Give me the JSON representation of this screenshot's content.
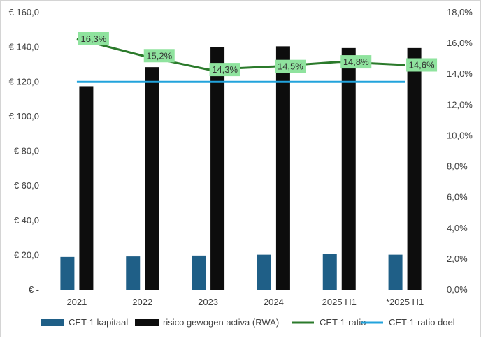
{
  "chart_data": {
    "type": "bar",
    "title": "",
    "categories": [
      "2021",
      "2022",
      "2023",
      "2024",
      "2025 H1",
      "*2025 H1"
    ],
    "left_axis": {
      "ylim": [
        0,
        160
      ],
      "ticks": [
        0,
        20,
        40,
        60,
        80,
        100,
        120,
        140,
        160
      ],
      "tick_labels": [
        "€ -",
        "€ 20,0",
        "€ 40,0",
        "€ 60,0",
        "€ 80,0",
        "€ 100,0",
        "€ 120,0",
        "€ 140,0",
        "€ 160,0"
      ]
    },
    "right_axis": {
      "ylim": [
        0,
        18
      ],
      "ticks": [
        0,
        2,
        4,
        6,
        8,
        10,
        12,
        14,
        16,
        18
      ],
      "tick_labels": [
        "0,0%",
        "2,0%",
        "4,0%",
        "6,0%",
        "8,0%",
        "10,0%",
        "12,0%",
        "14,0%",
        "16,0%",
        "18,0%"
      ]
    },
    "series": [
      {
        "name": "CET-1 kapitaal",
        "kind": "bar",
        "axis": "left",
        "color": "#1f5f87",
        "values": [
          19.0,
          19.3,
          19.8,
          20.3,
          20.7,
          20.3
        ]
      },
      {
        "name": "risico gewogen activa (RWA)",
        "kind": "bar",
        "axis": "left",
        "color": "#0d0d0d",
        "values": [
          117.5,
          128.5,
          140.0,
          140.5,
          139.5,
          139.5
        ]
      },
      {
        "name": "CET-1-ratio",
        "kind": "line",
        "axis": "right",
        "color": "#2b7a2b",
        "values": [
          16.3,
          15.2,
          14.3,
          14.5,
          14.8,
          14.6
        ],
        "labels": [
          "16,3%",
          "15,2%",
          "14,3%",
          "14,5%",
          "14,8%",
          "14,6%"
        ]
      },
      {
        "name": "CET-1-ratio doel",
        "kind": "line",
        "axis": "right",
        "color": "#22a3dc",
        "values": [
          13.5,
          13.5,
          13.5,
          13.5,
          13.5,
          13.5
        ]
      }
    ],
    "grid": false,
    "legend_position": "bottom"
  }
}
